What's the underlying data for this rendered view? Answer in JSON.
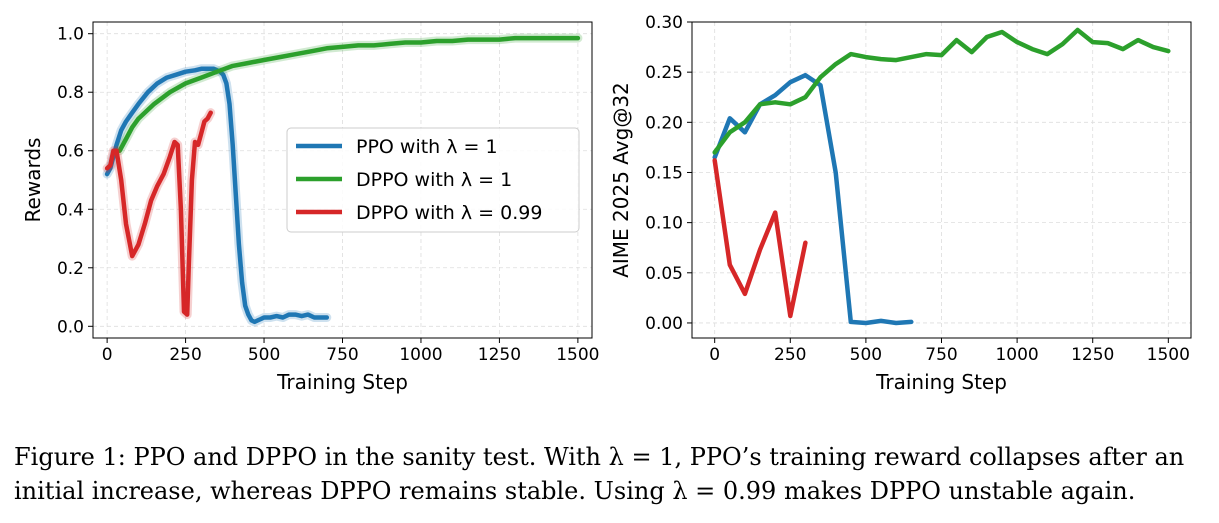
{
  "chart_data": [
    {
      "type": "line",
      "xlabel": "Training Step",
      "ylabel": "Rewards",
      "xlim": [
        -45,
        1545
      ],
      "ylim": [
        -0.04,
        1.04
      ],
      "xticks": [
        "0",
        "250",
        "500",
        "750",
        "1000",
        "1250",
        "1500"
      ],
      "xtick_values": [
        0,
        250,
        500,
        750,
        1000,
        1250,
        1500
      ],
      "yticks": [
        "0.0",
        "0.2",
        "0.4",
        "0.6",
        "0.8",
        "1.0"
      ],
      "ytick_values": [
        0,
        0.2,
        0.4,
        0.6,
        0.8,
        1.0
      ],
      "grid": true,
      "legend": "center-right",
      "series": [
        {
          "name": "PPO with λ = 1",
          "color": "#1f77b4",
          "x": [
            0,
            10,
            20,
            30,
            45,
            60,
            80,
            100,
            130,
            160,
            190,
            220,
            250,
            280,
            300,
            320,
            340,
            360,
            370,
            380,
            390,
            400,
            410,
            420,
            430,
            440,
            450,
            460,
            470,
            480,
            490,
            500,
            520,
            540,
            560,
            580,
            600,
            620,
            640,
            660,
            680,
            700
          ],
          "y": [
            0.52,
            0.54,
            0.58,
            0.62,
            0.67,
            0.7,
            0.73,
            0.76,
            0.8,
            0.83,
            0.85,
            0.86,
            0.87,
            0.875,
            0.88,
            0.88,
            0.88,
            0.87,
            0.86,
            0.83,
            0.76,
            0.62,
            0.45,
            0.28,
            0.15,
            0.07,
            0.04,
            0.02,
            0.015,
            0.02,
            0.025,
            0.03,
            0.03,
            0.035,
            0.03,
            0.04,
            0.04,
            0.035,
            0.04,
            0.03,
            0.03,
            0.03
          ]
        },
        {
          "name": "DPPO with λ = 1",
          "color": "#2ca02c",
          "x": [
            40,
            60,
            80,
            100,
            150,
            200,
            250,
            300,
            350,
            400,
            450,
            500,
            550,
            600,
            650,
            700,
            750,
            800,
            850,
            900,
            950,
            1000,
            1050,
            1100,
            1150,
            1200,
            1250,
            1300,
            1350,
            1400,
            1450,
            1500
          ],
          "y": [
            0.6,
            0.64,
            0.68,
            0.71,
            0.76,
            0.8,
            0.83,
            0.85,
            0.87,
            0.89,
            0.9,
            0.91,
            0.92,
            0.93,
            0.94,
            0.95,
            0.955,
            0.96,
            0.96,
            0.965,
            0.97,
            0.97,
            0.975,
            0.975,
            0.98,
            0.98,
            0.98,
            0.985,
            0.985,
            0.985,
            0.985,
            0.985
          ]
        },
        {
          "name": "DPPO with λ = 0.99",
          "color": "#d62728",
          "x": [
            0,
            10,
            20,
            30,
            45,
            60,
            80,
            100,
            120,
            140,
            160,
            180,
            200,
            215,
            225,
            235,
            245,
            255,
            260,
            270,
            280,
            290,
            300,
            310,
            320,
            330
          ],
          "y": [
            0.54,
            0.55,
            0.6,
            0.6,
            0.5,
            0.35,
            0.24,
            0.28,
            0.35,
            0.43,
            0.48,
            0.52,
            0.58,
            0.63,
            0.62,
            0.4,
            0.05,
            0.04,
            0.2,
            0.5,
            0.63,
            0.62,
            0.66,
            0.7,
            0.71,
            0.73
          ]
        }
      ]
    },
    {
      "type": "line",
      "xlabel": "Training Step",
      "ylabel": "AIME 2025 Avg@32",
      "xlim": [
        -75,
        1575
      ],
      "ylim": [
        -0.015,
        0.3
      ],
      "xticks": [
        "0",
        "250",
        "500",
        "750",
        "1000",
        "1250",
        "1500"
      ],
      "xtick_values": [
        0,
        250,
        500,
        750,
        1000,
        1250,
        1500
      ],
      "yticks": [
        "0.00",
        "0.05",
        "0.10",
        "0.15",
        "0.20",
        "0.25",
        "0.30"
      ],
      "ytick_values": [
        0,
        0.05,
        0.1,
        0.15,
        0.2,
        0.25,
        0.3
      ],
      "grid": true,
      "series": [
        {
          "name": "PPO with λ = 1",
          "color": "#1f77b4",
          "x": [
            0,
            50,
            100,
            150,
            200,
            250,
            300,
            350,
            400,
            450,
            500,
            550,
            600,
            650
          ],
          "y": [
            0.165,
            0.204,
            0.19,
            0.218,
            0.227,
            0.24,
            0.247,
            0.237,
            0.15,
            0.001,
            0.0,
            0.002,
            0.0,
            0.001
          ]
        },
        {
          "name": "DPPO with λ = 1",
          "color": "#2ca02c",
          "x": [
            0,
            50,
            100,
            150,
            200,
            250,
            300,
            350,
            400,
            450,
            500,
            550,
            600,
            650,
            700,
            750,
            800,
            850,
            900,
            950,
            1000,
            1050,
            1100,
            1150,
            1200,
            1250,
            1300,
            1350,
            1400,
            1450,
            1500
          ],
          "y": [
            0.17,
            0.19,
            0.2,
            0.218,
            0.22,
            0.218,
            0.225,
            0.245,
            0.258,
            0.268,
            0.265,
            0.263,
            0.262,
            0.265,
            0.268,
            0.267,
            0.282,
            0.27,
            0.285,
            0.29,
            0.28,
            0.273,
            0.268,
            0.278,
            0.292,
            0.28,
            0.279,
            0.273,
            0.282,
            0.275,
            0.271
          ]
        },
        {
          "name": "DPPO with λ = 0.99",
          "color": "#d62728",
          "x": [
            0,
            50,
            100,
            150,
            200,
            250,
            300
          ],
          "y": [
            0.162,
            0.058,
            0.029,
            0.073,
            0.11,
            0.007,
            0.08
          ]
        }
      ]
    }
  ],
  "caption": {
    "line1": "Figure 1: PPO and DPPO in the sanity test. With λ = 1, PPO’s training reward collapses after an",
    "line2": "initial increase, whereas DPPO remains stable. Using λ = 0.99 makes DPPO unstable again."
  }
}
